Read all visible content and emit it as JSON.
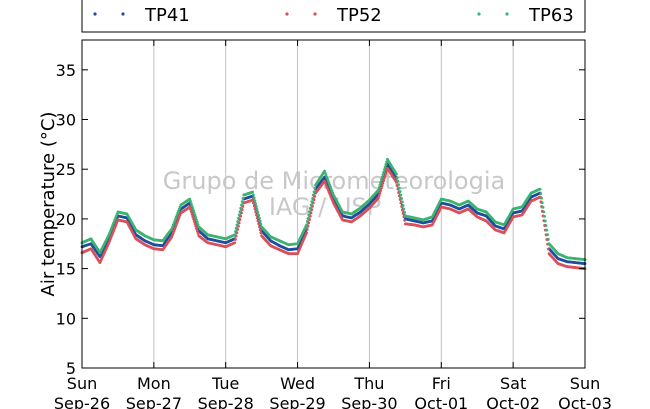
{
  "chart_data": {
    "type": "line",
    "title": "",
    "xlabel": "",
    "ylabel": "Air temperature (°C)",
    "ylim": [
      5,
      38
    ],
    "yticks": [
      5,
      10,
      15,
      20,
      25,
      30,
      35
    ],
    "xlim": [
      "2021-09-26T00:00",
      "2021-10-03T00:00"
    ],
    "x_ticks": [
      {
        "day": "Sun",
        "date": "Sep-26"
      },
      {
        "day": "Mon",
        "date": "Sep-27"
      },
      {
        "day": "Tue",
        "date": "Sep-28"
      },
      {
        "day": "Wed",
        "date": "Sep-29"
      },
      {
        "day": "Thu",
        "date": "Sep-30"
      },
      {
        "day": "Fri",
        "date": "Oct-01"
      },
      {
        "day": "Sat",
        "date": "Oct-02"
      },
      {
        "day": "Sun",
        "date": "Oct-03"
      }
    ],
    "grid": "vertical",
    "legend_position": "top",
    "watermark": [
      "Grupo de Micrometeorologia",
      "IAG / USP"
    ],
    "x": [
      "2021-09-26T00:00",
      "2021-09-26T03:00",
      "2021-09-26T06:00",
      "2021-09-26T09:00",
      "2021-09-26T12:00",
      "2021-09-26T15:00",
      "2021-09-26T18:00",
      "2021-09-26T21:00",
      "2021-09-27T00:00",
      "2021-09-27T03:00",
      "2021-09-27T06:00",
      "2021-09-27T09:00",
      "2021-09-27T12:00",
      "2021-09-27T15:00",
      "2021-09-27T18:00",
      "2021-09-27T21:00",
      "2021-09-28T00:00",
      "2021-09-28T03:00",
      "2021-09-28T06:00",
      "2021-09-28T09:00",
      "2021-09-28T12:00",
      "2021-09-28T15:00",
      "2021-09-28T18:00",
      "2021-09-28T21:00",
      "2021-09-29T00:00",
      "2021-09-29T03:00",
      "2021-09-29T06:00",
      "2021-09-29T09:00",
      "2021-09-29T12:00",
      "2021-09-29T15:00",
      "2021-09-29T18:00",
      "2021-09-29T21:00",
      "2021-09-30T00:00",
      "2021-09-30T03:00",
      "2021-09-30T06:00",
      "2021-09-30T09:00",
      "2021-09-30T12:00",
      "2021-09-30T15:00",
      "2021-09-30T18:00",
      "2021-09-30T21:00",
      "2021-10-01T00:00",
      "2021-10-01T03:00",
      "2021-10-01T06:00",
      "2021-10-01T09:00",
      "2021-10-01T12:00",
      "2021-10-01T15:00",
      "2021-10-01T18:00",
      "2021-10-01T21:00",
      "2021-10-02T00:00",
      "2021-10-02T03:00",
      "2021-10-02T06:00",
      "2021-10-02T09:00",
      "2021-10-02T12:00",
      "2021-10-02T15:00",
      "2021-10-02T18:00",
      "2021-10-02T21:00",
      "2021-10-03T00:00"
    ],
    "series": [
      {
        "name": "TP41",
        "color": "#1f4e9c",
        "values": [
          17.2,
          17.5,
          16.2,
          18.0,
          20.3,
          20.1,
          18.4,
          17.8,
          17.4,
          17.3,
          18.6,
          21.0,
          21.6,
          18.8,
          18.0,
          17.8,
          17.6,
          18.0,
          22.0,
          22.3,
          18.8,
          17.8,
          17.3,
          16.9,
          17.0,
          19.0,
          23.0,
          24.2,
          22.0,
          20.3,
          20.1,
          20.7,
          21.5,
          22.5,
          25.5,
          24.1,
          20.0,
          19.8,
          19.6,
          19.8,
          21.6,
          21.4,
          21.0,
          21.4,
          20.6,
          20.3,
          19.3,
          19.0,
          20.6,
          20.8,
          22.2,
          22.6,
          17.0,
          16.0,
          15.7,
          15.6,
          15.5
        ]
      },
      {
        "name": "TP52",
        "color": "#d9505a",
        "values": [
          16.6,
          17.0,
          15.6,
          17.6,
          19.9,
          19.7,
          18.0,
          17.4,
          17.0,
          16.9,
          18.2,
          20.6,
          21.2,
          18.3,
          17.6,
          17.4,
          17.2,
          17.6,
          21.6,
          21.9,
          18.3,
          17.3,
          16.9,
          16.5,
          16.5,
          18.6,
          22.6,
          23.8,
          21.6,
          19.9,
          19.7,
          20.3,
          21.1,
          22.1,
          25.1,
          23.7,
          19.5,
          19.4,
          19.2,
          19.4,
          21.2,
          21.0,
          20.6,
          21.0,
          20.2,
          19.8,
          18.9,
          18.6,
          20.2,
          20.4,
          21.8,
          22.2,
          16.5,
          15.5,
          15.2,
          15.1,
          15.0
        ]
      },
      {
        "name": "TP63",
        "color": "#3cb371",
        "values": [
          17.6,
          18.0,
          16.6,
          18.4,
          20.7,
          20.5,
          18.9,
          18.3,
          17.9,
          17.8,
          19.0,
          21.4,
          22.0,
          19.2,
          18.4,
          18.2,
          18.0,
          18.4,
          22.4,
          22.7,
          19.2,
          18.2,
          17.8,
          17.4,
          17.5,
          19.4,
          23.4,
          24.8,
          22.4,
          20.7,
          20.5,
          21.1,
          21.9,
          22.9,
          26.0,
          24.5,
          20.3,
          20.1,
          19.9,
          20.2,
          22.0,
          21.8,
          21.4,
          21.8,
          21.0,
          20.7,
          19.7,
          19.4,
          21.0,
          21.2,
          22.6,
          23.0,
          17.5,
          16.5,
          16.1,
          16.0,
          15.9
        ]
      }
    ]
  }
}
